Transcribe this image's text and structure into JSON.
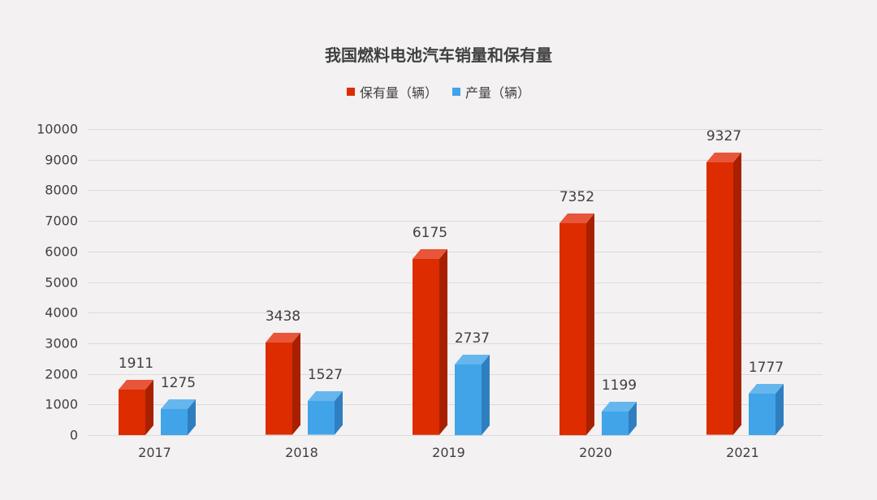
{
  "chart_data": {
    "type": "bar",
    "title": "我国燃料电池汽车销量和保有量",
    "categories": [
      "2017",
      "2018",
      "2019",
      "2020",
      "2021"
    ],
    "series": [
      {
        "name": "保有量（辆）",
        "color": "#dd2c00",
        "values": [
          1911,
          3438,
          6175,
          7352,
          9327
        ]
      },
      {
        "name": "产量（辆）",
        "color": "#41a4e8",
        "values": [
          1275,
          1527,
          2737,
          1199,
          1777
        ]
      }
    ],
    "xlabel": "",
    "ylabel": "",
    "ylim": [
      0,
      10000
    ],
    "yticks": [
      "0",
      "1000",
      "2000",
      "3000",
      "4000",
      "5000",
      "6000",
      "7000",
      "8000",
      "9000",
      "10000"
    ],
    "grid": true,
    "legend_position": "top",
    "style": "3d-column"
  },
  "title": "我国燃料电池汽车销量和保有量",
  "legend": [
    {
      "label": "保有量（辆）",
      "color": "#dd2c00"
    },
    {
      "label": "产量（辆）",
      "color": "#41a4e8"
    }
  ]
}
